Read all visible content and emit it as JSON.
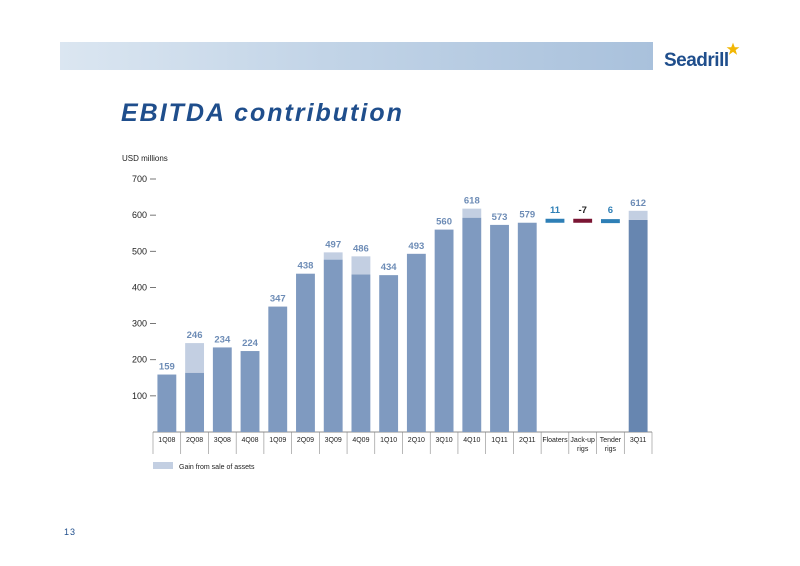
{
  "title": "EBITDA contribution",
  "page_number": "13",
  "logo": {
    "text": "Seadrill"
  },
  "colors": {
    "accent": "#1f4e8c",
    "bar": "#7f9ac0",
    "bar_dark": "#6786b0",
    "gain": "#c3cfe2",
    "label": "#6d8cb6",
    "positive_step": "#2e7fb6",
    "negative_step": "#7a1533"
  },
  "chart_data": {
    "type": "bar",
    "ylabel": "USD millions",
    "ylim": [
      0,
      700
    ],
    "yticks": [
      100,
      200,
      300,
      400,
      500,
      600,
      700
    ],
    "categories": [
      "1Q08",
      "2Q08",
      "3Q08",
      "4Q08",
      "1Q09",
      "2Q09",
      "3Q09",
      "4Q09",
      "1Q10",
      "2Q10",
      "3Q10",
      "4Q10",
      "1Q11",
      "2Q11",
      "Floaters",
      "Jack-up rigs",
      "Tender rigs",
      "3Q11"
    ],
    "bars": [
      {
        "category": "1Q08",
        "total": 159,
        "gain": 0,
        "label": "159"
      },
      {
        "category": "2Q08",
        "total": 246,
        "gain": 82,
        "label": "246"
      },
      {
        "category": "3Q08",
        "total": 234,
        "gain": 0,
        "label": "234"
      },
      {
        "category": "4Q08",
        "total": 224,
        "gain": 0,
        "label": "224"
      },
      {
        "category": "1Q09",
        "total": 347,
        "gain": 0,
        "label": "347"
      },
      {
        "category": "2Q09",
        "total": 438,
        "gain": 0,
        "label": "438"
      },
      {
        "category": "3Q09",
        "total": 497,
        "gain": 20,
        "label": "497"
      },
      {
        "category": "4Q09",
        "total": 486,
        "gain": 50,
        "label": "486"
      },
      {
        "category": "1Q10",
        "total": 434,
        "gain": 0,
        "label": "434"
      },
      {
        "category": "2Q10",
        "total": 493,
        "gain": 0,
        "label": "493"
      },
      {
        "category": "3Q10",
        "total": 560,
        "gain": 0,
        "label": "560"
      },
      {
        "category": "4Q10",
        "total": 618,
        "gain": 25,
        "label": "618"
      },
      {
        "category": "1Q11",
        "total": 573,
        "gain": 0,
        "label": "573"
      },
      {
        "category": "2Q11",
        "total": 579,
        "gain": 0,
        "label": "579"
      },
      {
        "category": "Floaters",
        "change": 11,
        "label": "11"
      },
      {
        "category": "Jack-up rigs",
        "change": -7,
        "label": "-7"
      },
      {
        "category": "Tender rigs",
        "change": 6,
        "label": "6"
      },
      {
        "category": "3Q11",
        "total": 612,
        "gain": 25,
        "label": "612"
      }
    ],
    "legend": {
      "entries": [
        "Gain from sale of assets"
      ],
      "placement": "bottom-left"
    },
    "grid": false
  }
}
